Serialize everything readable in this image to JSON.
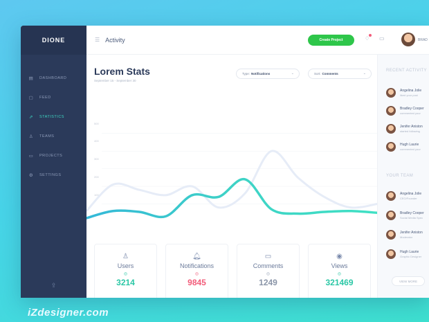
{
  "app": {
    "logo": "DIONE"
  },
  "sidebar": {
    "items": [
      {
        "label": "DASHBOARD",
        "icon": "dashboard-icon",
        "glyph": "▤",
        "active": false
      },
      {
        "label": "FEED",
        "icon": "feed-icon",
        "glyph": "▢",
        "active": false
      },
      {
        "label": "STATISTICS",
        "icon": "statistics-icon",
        "glyph": "⇗",
        "active": true
      },
      {
        "label": "TEAMS",
        "icon": "teams-icon",
        "glyph": "♙",
        "active": false
      },
      {
        "label": "PROJECTS",
        "icon": "projects-icon",
        "glyph": "▭",
        "active": false
      },
      {
        "label": "SETTINGS",
        "icon": "settings-icon",
        "glyph": "⚙",
        "active": false
      }
    ]
  },
  "header": {
    "title": "Activity",
    "create_label": "Create Project",
    "user_name": "BRAD"
  },
  "main": {
    "title": "Lorem Stats",
    "date_range": "September 15 - September 30",
    "type_filter": {
      "prefix": "Type:",
      "value": "Notifications"
    },
    "sort_filter": {
      "prefix": "Sort:",
      "value": "Comments"
    },
    "y_ticks": [
      "500",
      "400",
      "300",
      "200",
      "100"
    ]
  },
  "chart_data": {
    "type": "line",
    "y_ticks": [
      100,
      200,
      300,
      400,
      500
    ],
    "ylim": [
      0,
      550
    ],
    "series": [
      {
        "values": [
          20,
          60,
          55,
          30,
          150,
          140,
          240,
          70,
          45,
          55,
          60,
          50
        ]
      },
      {
        "values": [
          60,
          210,
          180,
          150,
          200,
          80,
          160,
          400,
          250,
          140,
          80,
          100
        ]
      }
    ],
    "colors": {
      "primary": "#3ed2c6",
      "secondary": "#e3eaf7"
    }
  },
  "cards": [
    {
      "label": "Users",
      "value": "3214",
      "icon": "user-icon",
      "glyph": "♙",
      "color": "#2cc7a6",
      "dot": "#2cc7a6"
    },
    {
      "label": "Notifications",
      "value": "9845",
      "icon": "bell-icon",
      "glyph": "🔔︎",
      "color": "#f25c7a",
      "dot": "#f25c7a"
    },
    {
      "label": "Comments",
      "value": "1249",
      "icon": "comment-icon",
      "glyph": "▭",
      "color": "#8a95a8",
      "dot": "#9aa5b8"
    },
    {
      "label": "Views",
      "value": "321469",
      "icon": "eye-icon",
      "glyph": "◉",
      "color": "#2cc7a6",
      "dot": "#2cc7a6"
    }
  ],
  "right": {
    "recent_title": "RECENT ACTIVITY",
    "recent": [
      {
        "name": "Angelina Jolie",
        "sub": "liked your post"
      },
      {
        "name": "Bradley Cooper",
        "sub": "commented your"
      },
      {
        "name": "Jenifer Aniston",
        "sub": "started following"
      },
      {
        "name": "Hugh Laurie",
        "sub": "commented your"
      }
    ],
    "team_title": "YOUR TEAM",
    "team": [
      {
        "name": "Angelina Jolie",
        "sub": "CEO/Founder"
      },
      {
        "name": "Bradley Cooper",
        "sub": "Social Media Spec"
      },
      {
        "name": "Jenifer Aniston",
        "sub": "Moderator"
      },
      {
        "name": "Hugh Laurie",
        "sub": "Graphic Designer"
      }
    ],
    "view_more": "VIEW MORE"
  },
  "watermark": "iZdesigner.com"
}
